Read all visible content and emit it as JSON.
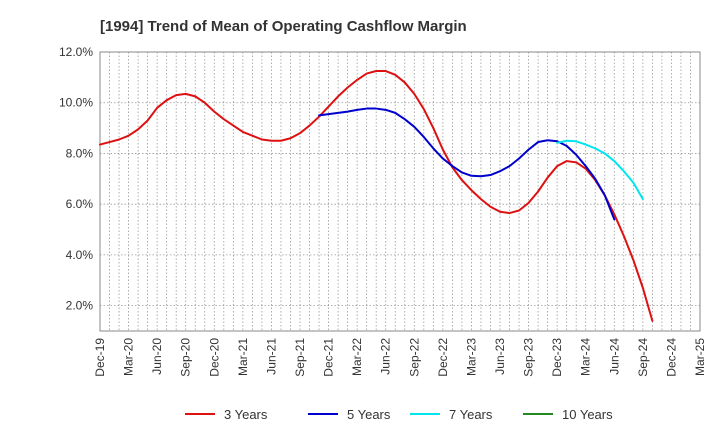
{
  "chart_data": {
    "type": "line",
    "title": "[1994]  Trend of Mean of Operating Cashflow Margin",
    "xlabel": "",
    "ylabel": "",
    "x_ticks": [
      "Dec-19",
      "Mar-20",
      "Jun-20",
      "Sep-20",
      "Dec-20",
      "Mar-21",
      "Jun-21",
      "Sep-21",
      "Dec-21",
      "Mar-22",
      "Jun-22",
      "Sep-22",
      "Dec-22",
      "Mar-23",
      "Jun-23",
      "Sep-23",
      "Dec-23",
      "Mar-24",
      "Jun-24",
      "Sep-24",
      "Dec-24",
      "Mar-25"
    ],
    "y_ticks": [
      "2.0%",
      "4.0%",
      "6.0%",
      "8.0%",
      "10.0%",
      "12.0%"
    ],
    "ylim": [
      1.0,
      12.0
    ],
    "grid": true,
    "legend_position": "bottom",
    "series": [
      {
        "name": "3 Years",
        "color": "#dd1111",
        "points": [
          [
            "Dec-19",
            8.35
          ],
          [
            "Jan-20",
            8.45
          ],
          [
            "Feb-20",
            8.55
          ],
          [
            "Mar-20",
            8.7
          ],
          [
            "Apr-20",
            8.95
          ],
          [
            "May-20",
            9.3
          ],
          [
            "Jun-20",
            9.8
          ],
          [
            "Jul-20",
            10.1
          ],
          [
            "Aug-20",
            10.3
          ],
          [
            "Sep-20",
            10.35
          ],
          [
            "Oct-20",
            10.25
          ],
          [
            "Nov-20",
            10.0
          ],
          [
            "Dec-20",
            9.65
          ],
          [
            "Jan-21",
            9.35
          ],
          [
            "Feb-21",
            9.1
          ],
          [
            "Mar-21",
            8.85
          ],
          [
            "Apr-21",
            8.7
          ],
          [
            "May-21",
            8.55
          ],
          [
            "Jun-21",
            8.5
          ],
          [
            "Jul-21",
            8.5
          ],
          [
            "Aug-21",
            8.6
          ],
          [
            "Sep-21",
            8.8
          ],
          [
            "Oct-21",
            9.1
          ],
          [
            "Nov-21",
            9.45
          ],
          [
            "Dec-21",
            9.85
          ],
          [
            "Jan-22",
            10.25
          ],
          [
            "Feb-22",
            10.6
          ],
          [
            "Mar-22",
            10.9
          ],
          [
            "Apr-22",
            11.15
          ],
          [
            "May-22",
            11.25
          ],
          [
            "Jun-22",
            11.25
          ],
          [
            "Jul-22",
            11.1
          ],
          [
            "Aug-22",
            10.8
          ],
          [
            "Sep-22",
            10.35
          ],
          [
            "Oct-22",
            9.75
          ],
          [
            "Nov-22",
            9.0
          ],
          [
            "Dec-22",
            8.15
          ],
          [
            "Jan-23",
            7.45
          ],
          [
            "Feb-23",
            6.95
          ],
          [
            "Mar-23",
            6.55
          ],
          [
            "Apr-23",
            6.2
          ],
          [
            "May-23",
            5.9
          ],
          [
            "Jun-23",
            5.7
          ],
          [
            "Jul-23",
            5.65
          ],
          [
            "Aug-23",
            5.75
          ],
          [
            "Sep-23",
            6.05
          ],
          [
            "Oct-23",
            6.5
          ],
          [
            "Nov-23",
            7.05
          ],
          [
            "Dec-23",
            7.5
          ],
          [
            "Jan-24",
            7.7
          ],
          [
            "Feb-24",
            7.65
          ],
          [
            "Mar-24",
            7.4
          ],
          [
            "Apr-24",
            6.95
          ],
          [
            "May-24",
            6.35
          ],
          [
            "Jun-24",
            5.6
          ],
          [
            "Jul-24",
            4.75
          ],
          [
            "Aug-24",
            3.8
          ],
          [
            "Sep-24",
            2.7
          ],
          [
            "Oct-24",
            1.4
          ]
        ]
      },
      {
        "name": "5 Years",
        "color": "#0000cc",
        "points": [
          [
            "Nov-21",
            9.5
          ],
          [
            "Dec-21",
            9.55
          ],
          [
            "Jan-22",
            9.6
          ],
          [
            "Feb-22",
            9.65
          ],
          [
            "Mar-22",
            9.72
          ],
          [
            "Apr-22",
            9.77
          ],
          [
            "May-22",
            9.77
          ],
          [
            "Jun-22",
            9.72
          ],
          [
            "Jul-22",
            9.6
          ],
          [
            "Aug-22",
            9.35
          ],
          [
            "Sep-22",
            9.05
          ],
          [
            "Oct-22",
            8.65
          ],
          [
            "Nov-22",
            8.2
          ],
          [
            "Dec-22",
            7.8
          ],
          [
            "Jan-23",
            7.5
          ],
          [
            "Feb-23",
            7.25
          ],
          [
            "Mar-23",
            7.12
          ],
          [
            "Apr-23",
            7.1
          ],
          [
            "May-23",
            7.15
          ],
          [
            "Jun-23",
            7.3
          ],
          [
            "Jul-23",
            7.5
          ],
          [
            "Aug-23",
            7.8
          ],
          [
            "Sep-23",
            8.15
          ],
          [
            "Oct-23",
            8.45
          ],
          [
            "Nov-23",
            8.52
          ],
          [
            "Dec-23",
            8.48
          ],
          [
            "Jan-24",
            8.3
          ],
          [
            "Feb-24",
            7.95
          ],
          [
            "Mar-24",
            7.5
          ],
          [
            "Apr-24",
            7.0
          ],
          [
            "May-24",
            6.35
          ],
          [
            "Jun-24",
            5.4
          ]
        ]
      },
      {
        "name": "7 Years",
        "color": "#00e5ee",
        "points": [
          [
            "Dec-23",
            8.42
          ],
          [
            "Jan-24",
            8.5
          ],
          [
            "Feb-24",
            8.48
          ],
          [
            "Mar-24",
            8.35
          ],
          [
            "Apr-24",
            8.2
          ],
          [
            "May-24",
            8.0
          ],
          [
            "Jun-24",
            7.7
          ],
          [
            "Jul-24",
            7.3
          ],
          [
            "Aug-24",
            6.85
          ],
          [
            "Sep-24",
            6.2
          ]
        ]
      },
      {
        "name": "10 Years",
        "color": "#228822",
        "points": []
      }
    ]
  }
}
